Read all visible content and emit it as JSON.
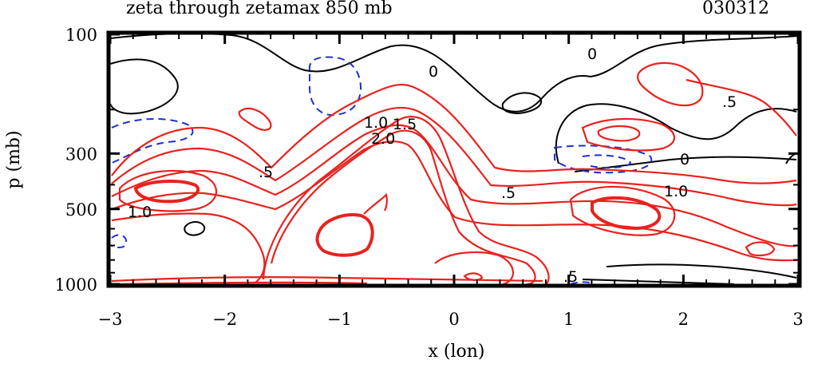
{
  "chart_data": {
    "type": "contour",
    "title": "zeta through zetamax 850 mb",
    "date_label": "030312",
    "xlabel": "x (lon)",
    "ylabel": "p (mb)",
    "xlim": [
      -3,
      3
    ],
    "x_ticks": [
      "-3",
      "-2",
      "-1",
      "0",
      "1",
      "2",
      "3"
    ],
    "ylim": [
      1000,
      100
    ],
    "y_scale": "log",
    "y_ticks": [
      "100",
      "300",
      "500",
      "1000"
    ],
    "contour_labels": [
      "0",
      "0",
      "0",
      ".5",
      ".5",
      ".5",
      "1.0",
      "1.0",
      "2.0",
      ".5",
      "1.0",
      "1.5"
    ],
    "colors": {
      "positive": "#e8221e",
      "zero": "#000000",
      "negative": "#1d2fd4"
    },
    "negative_style": "dashed"
  }
}
